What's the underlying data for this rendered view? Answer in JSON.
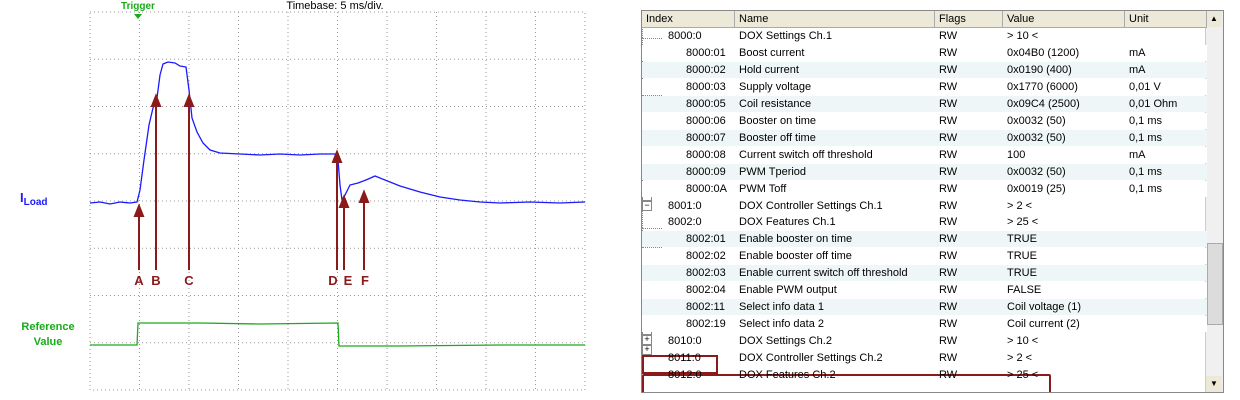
{
  "scope": {
    "trigger": "Trigger",
    "timebase": "Timebase: 5 ms/div.",
    "channel_main": "I",
    "channel_sub": "Load",
    "reference_lines": [
      "Reference",
      "Value"
    ],
    "markers": [
      "A",
      "B",
      "C",
      "D",
      "E",
      "F"
    ]
  },
  "table": {
    "headers": [
      "Index",
      "Name",
      "Flags",
      "Value",
      "Unit"
    ],
    "rows": [
      {
        "index": "8000:0",
        "name": "DOX Settings Ch.1",
        "flags": "RW",
        "value": "> 10 <"
      },
      {
        "index": "8000:01",
        "name": "Boost current",
        "flags": "RW",
        "value": "0x04B0 (1200)",
        "unit": "mA"
      },
      {
        "index": "8000:02",
        "name": "Hold current",
        "flags": "RW",
        "value": "0x0190 (400)",
        "unit": "mA"
      },
      {
        "index": "8000:03",
        "name": "Supply voltage",
        "flags": "RW",
        "value": "0x1770 (6000)",
        "unit": "0,01 V"
      },
      {
        "index": "8000:05",
        "name": "Coil resistance",
        "flags": "RW",
        "value": "0x09C4 (2500)",
        "unit": "0,01 Ohm"
      },
      {
        "index": "8000:06",
        "name": "Booster on time",
        "flags": "RW",
        "value": "0x0032 (50)",
        "unit": "0,1 ms"
      },
      {
        "index": "8000:07",
        "name": "Booster off time",
        "flags": "RW",
        "value": "0x0032 (50)",
        "unit": "0,1 ms"
      },
      {
        "index": "8000:08",
        "name": "Current switch off threshold",
        "flags": "RW",
        "value": "100",
        "unit": "mA"
      },
      {
        "index": "8000:09",
        "name": "PWM Tperiod",
        "flags": "RW",
        "value": "0x0032 (50)",
        "unit": "0,1 ms"
      },
      {
        "index": "8000:0A",
        "name": "PWM Toff",
        "flags": "RW",
        "value": "0x0019 (25)",
        "unit": "0,1 ms"
      },
      {
        "index": "8001:0",
        "name": "DOX Controller Settings Ch.1",
        "flags": "RW",
        "value": "> 2 <"
      },
      {
        "index": "8002:0",
        "name": "DOX Features Ch.1",
        "flags": "RW",
        "value": "> 25 <"
      },
      {
        "index": "8002:01",
        "name": "Enable booster on time",
        "flags": "RW",
        "value": "TRUE"
      },
      {
        "index": "8002:02",
        "name": "Enable booster off time",
        "flags": "RW",
        "value": "TRUE"
      },
      {
        "index": "8002:03",
        "name": "Enable current switch off threshold",
        "flags": "RW",
        "value": "TRUE"
      },
      {
        "index": "8002:04",
        "name": "Enable PWM output",
        "flags": "RW",
        "value": "FALSE"
      },
      {
        "index": "8002:11",
        "name": "Select info data 1",
        "flags": "RW",
        "value": "Coil voltage (1)"
      },
      {
        "index": "8002:19",
        "name": "Select info data 2",
        "flags": "RW",
        "value": "Coil current (2)"
      },
      {
        "index": "8010:0",
        "name": "DOX Settings Ch.2",
        "flags": "RW",
        "value": "> 10 <"
      },
      {
        "index": "8011:0",
        "name": "DOX Controller Settings Ch.2",
        "flags": "RW",
        "value": "> 2 <"
      },
      {
        "index": "8012:0",
        "name": "DOX Features Ch.2",
        "flags": "RW",
        "value": "> 25 <"
      }
    ]
  }
}
